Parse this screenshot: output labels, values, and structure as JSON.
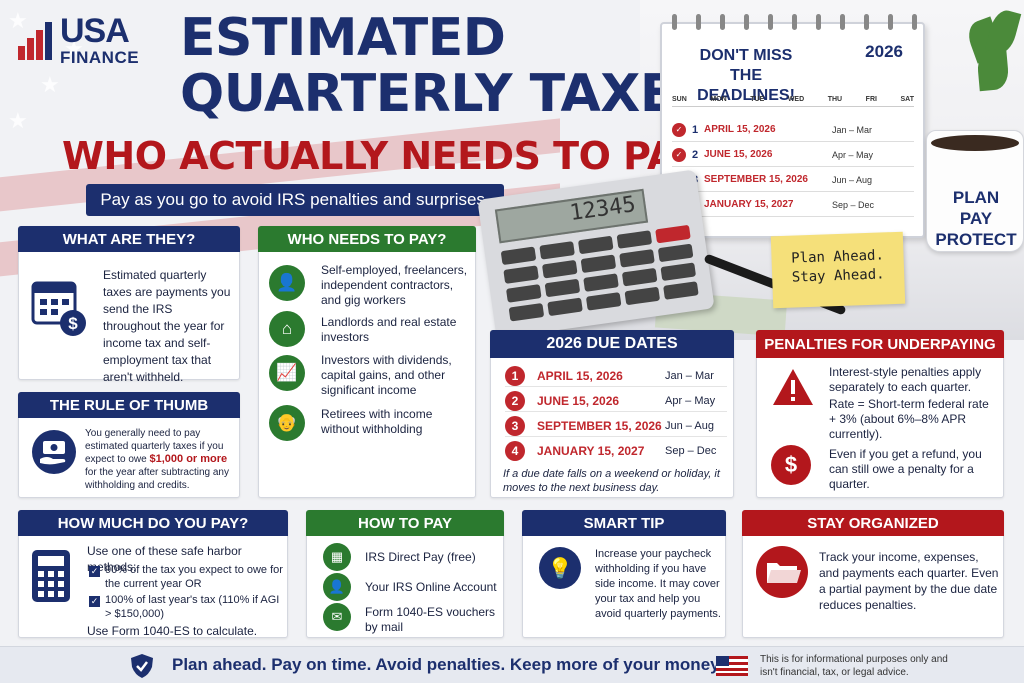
{
  "brand": {
    "name": "USA",
    "sub": "FINANCE"
  },
  "title": {
    "line1": "ESTIMATED",
    "line2": "QUARTERLY TAXES:",
    "line3": "WHO ACTUALLY NEEDS TO PAY THEM"
  },
  "subtitle": "Pay as you go to avoid IRS penalties and surprises.",
  "calendar": {
    "heading": "DON'T MISS THE DEADLINES!",
    "year": "2026",
    "days": [
      "SUN",
      "MON",
      "TUE",
      "WED",
      "THU",
      "FRI",
      "SAT"
    ],
    "rows": [
      {
        "n": "1",
        "date": "APRIL 15, 2026",
        "range": "Jan – Mar"
      },
      {
        "n": "2",
        "date": "JUNE 15, 2026",
        "range": "Apr – May"
      },
      {
        "n": "3",
        "date": "SEPTEMBER 15, 2026",
        "range": "Jun – Aug"
      },
      {
        "n": "4",
        "date": "JANUARY 15, 2027",
        "range": "Sep – Dec"
      }
    ]
  },
  "calculator": {
    "display": "12345"
  },
  "mug": {
    "l1": "PLAN",
    "l2": "PAY",
    "l3": "PROTECT"
  },
  "sticky": {
    "l1": "Plan Ahead.",
    "l2": "Stay Ahead."
  },
  "what": {
    "heading": "WHAT ARE THEY?",
    "body": "Estimated quarterly taxes are payments you send the IRS throughout the year for income tax and self-employment tax that aren't withheld."
  },
  "who": {
    "heading": "WHO NEEDS TO PAY?",
    "items": [
      {
        "icon": "person-icon",
        "glyph": "👤",
        "text": "Self-employed, freelancers, independent contractors, and gig workers"
      },
      {
        "icon": "house-icon",
        "glyph": "⌂",
        "text": "Landlords and real estate investors"
      },
      {
        "icon": "growth-chart-icon",
        "glyph": "📈",
        "text": "Investors with dividends, capital gains, and other significant income"
      },
      {
        "icon": "retiree-icon",
        "glyph": "👴",
        "text": "Retirees with income without withholding"
      }
    ]
  },
  "rule": {
    "heading": "THE RULE OF THUMB",
    "pre": "You generally need to pay estimated quarterly taxes if you expect to owe",
    "amount": "$1,000 or more",
    "post": "for the year after subtracting any withholding and credits."
  },
  "due": {
    "heading": "2026 DUE DATES",
    "rows": [
      {
        "n": "1",
        "date": "APRIL 15, 2026",
        "range": "Jan – Mar"
      },
      {
        "n": "2",
        "date": "JUNE 15, 2026",
        "range": "Apr – May"
      },
      {
        "n": "3",
        "date": "SEPTEMBER 15, 2026",
        "range": "Jun – Aug"
      },
      {
        "n": "4",
        "date": "JANUARY 15, 2027",
        "range": "Sep – Dec"
      }
    ],
    "note": "If a due date falls on a weekend or holiday, it moves to the next business day."
  },
  "penalties": {
    "heading": "PENALTIES FOR UNDERPAYING",
    "p1": "Interest-style penalties apply separately to each quarter.",
    "p2": "Rate = Short-term federal rate + 3% (about 6%–8% APR currently).",
    "p3": "Even if you get a refund, you can still owe a penalty for a quarter."
  },
  "howmuch": {
    "heading": "HOW MUCH DO YOU PAY?",
    "intro": "Use one of these safe harbor methods:",
    "b1": "90% of the tax you expect to owe for the current year OR",
    "b2": "100% of last year's tax (110% if AGI > $150,000)",
    "outro": "Use Form 1040-ES to calculate."
  },
  "howpay": {
    "heading": "HOW TO PAY",
    "items": [
      {
        "icon": "bank-icon",
        "glyph": "▦",
        "text": "IRS Direct Pay (free)"
      },
      {
        "icon": "account-icon",
        "glyph": "👤",
        "text": "Your IRS Online Account"
      },
      {
        "icon": "mail-icon",
        "glyph": "✉",
        "text": "Form 1040-ES vouchers by mail"
      }
    ]
  },
  "tip": {
    "heading": "SMART TIP",
    "body": "Increase your paycheck withholding if you have side income. It may cover your tax and help you avoid quarterly payments."
  },
  "organized": {
    "heading": "STAY ORGANIZED",
    "body": "Track your income, expenses, and payments each quarter. Even a partial payment by the due date reduces penalties."
  },
  "footer": {
    "slogan": "Plan ahead. Pay on time. Avoid penalties. Keep more of your money.",
    "disclaimer": "This is for informational purposes only and isn't financial, tax, or legal advice."
  },
  "colors": {
    "navy": "#1c2f6e",
    "red": "#b3171c",
    "green": "#2b7a2f"
  }
}
